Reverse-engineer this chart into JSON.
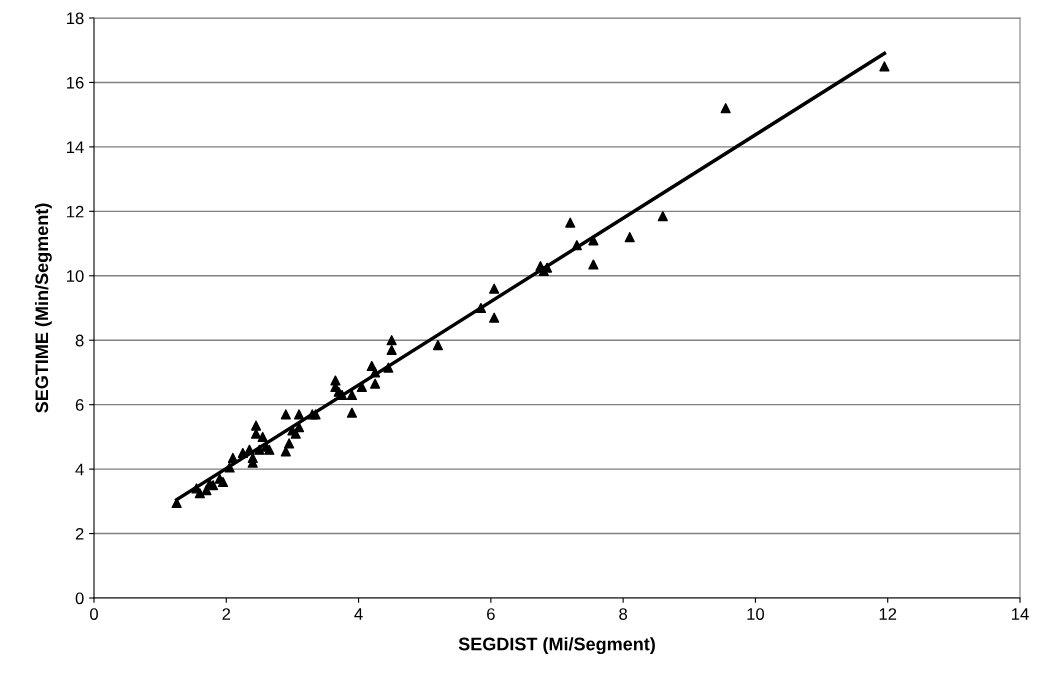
{
  "chart_data": {
    "type": "scatter",
    "xlabel": "SEGDIST (Mi/Segment)",
    "ylabel": "SEGTIME (Min/Segment)",
    "xlim": [
      0,
      14
    ],
    "xticks": [
      0,
      2,
      4,
      6,
      8,
      10,
      12,
      14
    ],
    "ylim": [
      0,
      18
    ],
    "yticks": [
      0,
      2,
      4,
      6,
      8,
      10,
      12,
      14,
      16,
      18
    ],
    "grid": "y",
    "legend": false,
    "series": [
      {
        "color": "#000000",
        "marker": "triangle",
        "x": [
          1.25,
          1.55,
          1.6,
          1.7,
          1.75,
          1.8,
          1.9,
          1.95,
          2.05,
          2.1,
          2.25,
          2.35,
          2.4,
          2.4,
          2.45,
          2.45,
          2.5,
          2.55,
          2.6,
          2.65,
          2.9,
          2.9,
          2.95,
          3.0,
          3.05,
          3.1,
          3.1,
          3.3,
          3.35,
          3.65,
          3.65,
          3.7,
          3.75,
          3.9,
          3.9,
          4.05,
          4.2,
          4.25,
          4.25,
          4.45,
          4.5,
          4.5,
          5.2,
          5.85,
          6.05,
          6.05,
          6.75,
          6.8,
          6.85,
          7.2,
          7.3,
          7.55,
          7.55,
          8.1,
          8.6,
          9.55,
          11.95
        ],
        "values": [
          2.95,
          3.4,
          3.25,
          3.35,
          3.55,
          3.5,
          3.7,
          3.6,
          4.05,
          4.35,
          4.5,
          4.6,
          4.2,
          4.35,
          5.35,
          5.1,
          4.6,
          5.0,
          4.7,
          4.6,
          4.55,
          5.7,
          4.8,
          5.2,
          5.1,
          5.7,
          5.3,
          5.7,
          5.7,
          6.75,
          6.55,
          6.4,
          6.3,
          5.75,
          6.3,
          6.55,
          7.2,
          6.65,
          7.0,
          7.15,
          8.0,
          7.7,
          7.85,
          9.0,
          9.6,
          8.7,
          10.3,
          10.15,
          10.25,
          11.65,
          10.95,
          11.1,
          10.35,
          11.2,
          11.85,
          15.2,
          16.5
        ]
      },
      {
        "type": "line",
        "color": "#000000",
        "marker": "none",
        "line_style": "solid",
        "x": [
          1.25,
          11.95
        ],
        "values": [
          3.05,
          16.9
        ]
      }
    ]
  }
}
